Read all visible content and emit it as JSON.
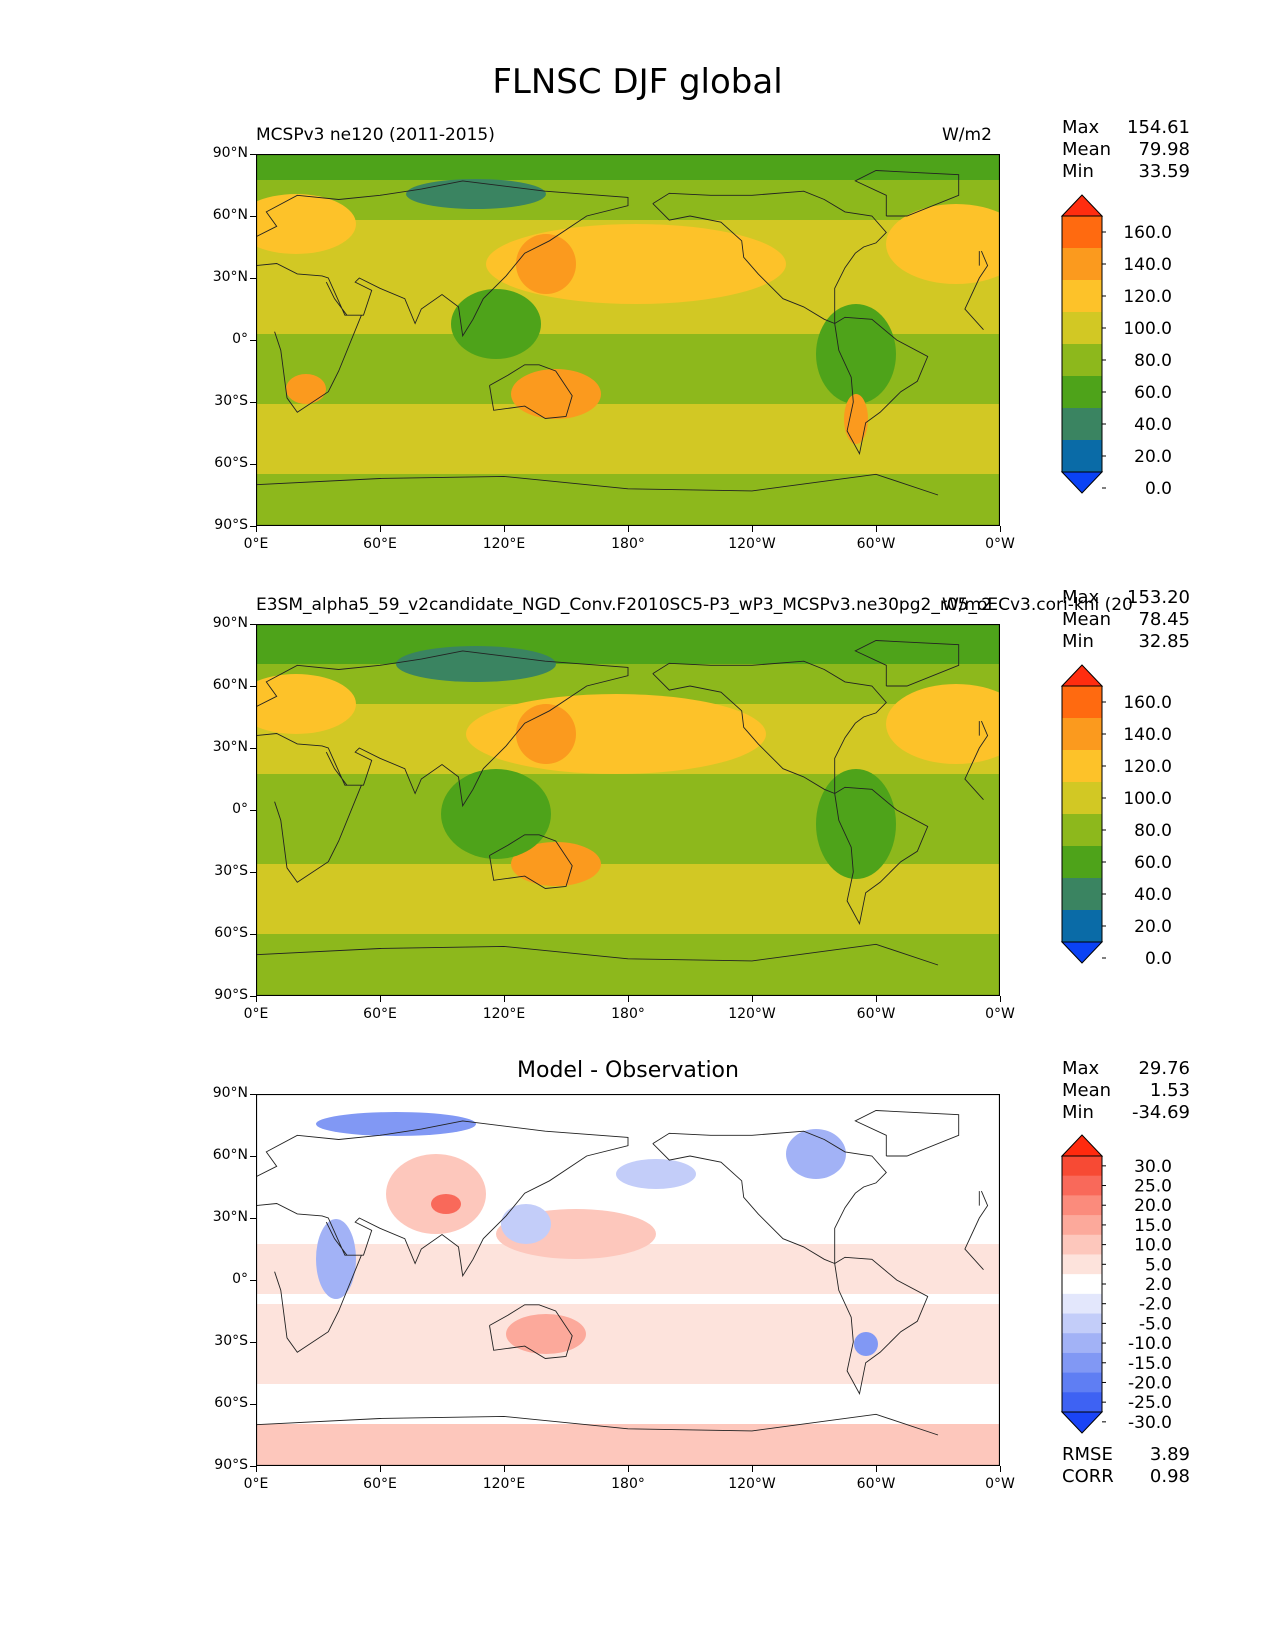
{
  "figure": {
    "title": "FLNSC DJF global"
  },
  "chart_data": [
    {
      "type": "heatmap",
      "title": "MCSPv3 ne120 (2011-2015)",
      "units": "W/m2",
      "stats": [
        {
          "label": "Max",
          "value": "154.61"
        },
        {
          "label": "Mean",
          "value": "79.98"
        },
        {
          "label": "Min",
          "value": "33.59"
        }
      ],
      "xticks": [
        "0°E",
        "60°E",
        "120°E",
        "180°",
        "120°W",
        "60°W",
        "0°W"
      ],
      "yticks": [
        "90°N",
        "60°N",
        "30°N",
        "0°",
        "30°S",
        "60°S",
        "90°S"
      ],
      "xlim": [
        0,
        360
      ],
      "ylim": [
        -90,
        90
      ],
      "colorbar": {
        "levels": [
          "160.0",
          "140.0",
          "120.0",
          "100.0",
          "80.0",
          "60.0",
          "40.0",
          "20.0",
          "0.0"
        ],
        "colors": [
          "#ff2d0f",
          "#ff6a10",
          "#fb9a1e",
          "#fdc229",
          "#d2c824",
          "#8db81c",
          "#4ea31a",
          "#3a8461",
          "#0a6ba7",
          "#0a42f5"
        ]
      }
    },
    {
      "type": "heatmap",
      "title": "E3SM_alpha5_59_v2candidate_NGD_Conv.F2010SC5-P3_wP3_MCSPv3.ne30pg2_r05_oECv3.cori-knl (20",
      "units": "W/m2",
      "stats": [
        {
          "label": "Max",
          "value": "153.20"
        },
        {
          "label": "Mean",
          "value": "78.45"
        },
        {
          "label": "Min",
          "value": "32.85"
        }
      ],
      "xticks": [
        "0°E",
        "60°E",
        "120°E",
        "180°",
        "120°W",
        "60°W",
        "0°W"
      ],
      "yticks": [
        "90°N",
        "60°N",
        "30°N",
        "0°",
        "30°S",
        "60°S",
        "90°S"
      ],
      "xlim": [
        0,
        360
      ],
      "ylim": [
        -90,
        90
      ],
      "colorbar": {
        "levels": [
          "160.0",
          "140.0",
          "120.0",
          "100.0",
          "80.0",
          "60.0",
          "40.0",
          "20.0",
          "0.0"
        ],
        "colors": [
          "#ff2d0f",
          "#ff6a10",
          "#fb9a1e",
          "#fdc229",
          "#d2c824",
          "#8db81c",
          "#4ea31a",
          "#3a8461",
          "#0a6ba7",
          "#0a42f5"
        ]
      }
    },
    {
      "type": "heatmap",
      "title": "Model - Observation",
      "stats": [
        {
          "label": "Max",
          "value": "29.76"
        },
        {
          "label": "Mean",
          "value": "1.53"
        },
        {
          "label": "Min",
          "value": "-34.69"
        }
      ],
      "metrics": [
        {
          "label": "RMSE",
          "value": "3.89"
        },
        {
          "label": "CORR",
          "value": "0.98"
        }
      ],
      "xticks": [
        "0°E",
        "60°E",
        "120°E",
        "180°",
        "120°W",
        "60°W",
        "0°W"
      ],
      "yticks": [
        "90°N",
        "60°N",
        "30°N",
        "0°",
        "30°S",
        "60°S",
        "90°S"
      ],
      "xlim": [
        0,
        360
      ],
      "ylim": [
        -90,
        90
      ],
      "colorbar": {
        "levels": [
          "30.0",
          "25.0",
          "20.0",
          "15.0",
          "10.0",
          "5.0",
          "2.0",
          "-2.0",
          "-5.0",
          "-10.0",
          "-15.0",
          "-20.0",
          "-25.0",
          "-30.0"
        ],
        "colors": [
          "#ff2a0e",
          "#f74a34",
          "#f9695a",
          "#fb8b7c",
          "#fca99b",
          "#fdc7bc",
          "#fde3dc",
          "#ffffff",
          "#e3e7fc",
          "#c3cdf9",
          "#a2b2f6",
          "#8198f4",
          "#5f7ef3",
          "#3e62f3",
          "#1a44f6"
        ]
      }
    }
  ]
}
